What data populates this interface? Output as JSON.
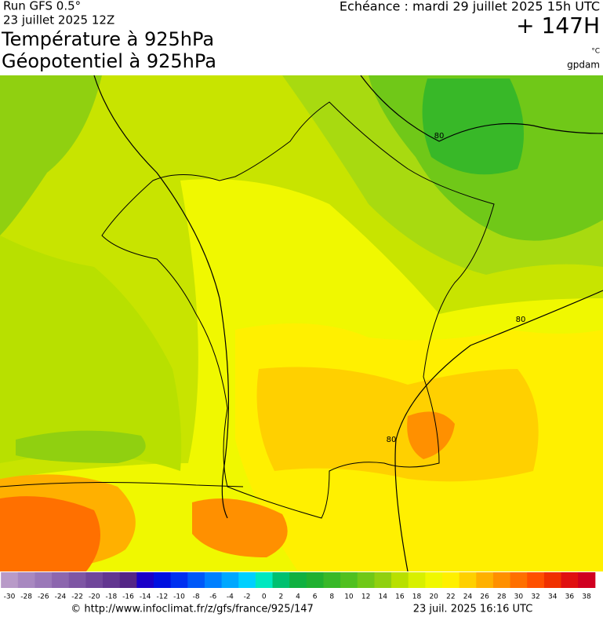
{
  "header": {
    "run": "Run GFS 0.5°",
    "run_date": "23 juillet 2025 12Z",
    "title1": "Température à 925hPa",
    "title2": "Géopotentiel à 925hPa",
    "valid": "Echéance : mardi 29 juillet 2025 15h UTC",
    "lead": "+ 147H",
    "unit": "°C",
    "unit2": "gpdam"
  },
  "contour_labels": [
    "80",
    "80",
    "80"
  ],
  "colorbar": {
    "ticks": [
      -30,
      -28,
      -26,
      -24,
      -22,
      -20,
      -18,
      -16,
      -14,
      -12,
      -10,
      -8,
      -6,
      -4,
      -2,
      0,
      2,
      4,
      6,
      8,
      10,
      12,
      14,
      16,
      18,
      20,
      22,
      24,
      26,
      28,
      30,
      32,
      34,
      36,
      38
    ],
    "colors": [
      "#b89ac8",
      "#a888c0",
      "#9a78b8",
      "#8c66ae",
      "#7e56a4",
      "#70469a",
      "#623690",
      "#542686",
      "#1a00c8",
      "#0010e0",
      "#0030f0",
      "#0058f8",
      "#0080ff",
      "#00a8ff",
      "#00d0ff",
      "#00e8c0",
      "#00c070",
      "#10b040",
      "#20b030",
      "#38b828",
      "#50c020",
      "#70c818",
      "#90d010",
      "#b8e000",
      "#d8f000",
      "#f0f800",
      "#fff000",
      "#ffd000",
      "#ffb000",
      "#ff9000",
      "#ff7000",
      "#ff5000",
      "#f03000",
      "#e01010",
      "#d00020"
    ]
  },
  "footer": {
    "url": "© http://www.infoclimat.fr/z/gfs/france/925/147",
    "date": "23 juil. 2025 16:16 UTC"
  }
}
